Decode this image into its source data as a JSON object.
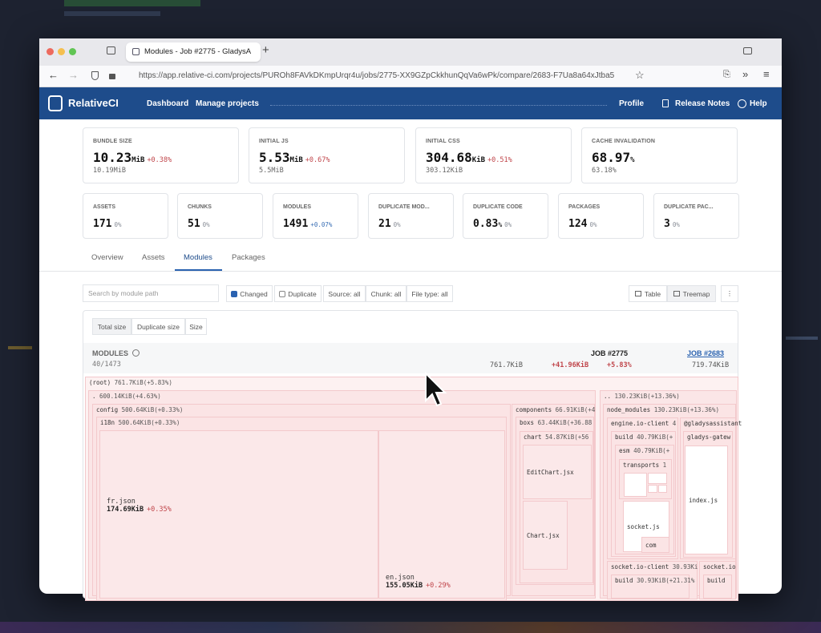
{
  "browser": {
    "tab_title": "Modules - Job #2775 - GladysA",
    "url": "https://app.relative-ci.com/projects/PUROh8FAVkDKmpUrqr4u/jobs/2775-XX9GZpCkkhunQqVa6wPk/compare/2683-F7Ua8a64xJtba5"
  },
  "nav": {
    "brand": "RelativeCI",
    "links": [
      "Dashboard",
      "Manage projects"
    ],
    "right": [
      "Profile",
      "Release Notes",
      "Help"
    ]
  },
  "summary": {
    "primary": [
      {
        "label": "BUNDLE SIZE",
        "value": "10.23",
        "unit": "MiB",
        "delta": "+0.38%",
        "delta_color": "#c0464b",
        "baseline": "10.19MiB"
      },
      {
        "label": "INITIAL JS",
        "value": "5.53",
        "unit": "MiB",
        "delta": "+0.67%",
        "delta_color": "#c0464b",
        "baseline": "5.5MiB"
      },
      {
        "label": "INITIAL CSS",
        "value": "304.68",
        "unit": "KiB",
        "delta": "+0.51%",
        "delta_color": "#c0464b",
        "baseline": "303.12KiB"
      },
      {
        "label": "CACHE INVALIDATION",
        "value": "68.97",
        "unit": "%",
        "delta": "",
        "delta_color": "#c0464b",
        "baseline": "63.18%"
      }
    ],
    "secondary": [
      {
        "label": "ASSETS",
        "value": "171",
        "unit": "",
        "delta": "0%",
        "delta_color": "#8a8f98"
      },
      {
        "label": "CHUNKS",
        "value": "51",
        "unit": "",
        "delta": "0%",
        "delta_color": "#8a8f98"
      },
      {
        "label": "MODULES",
        "value": "1491",
        "unit": "",
        "delta": "+0.07%",
        "delta_color": "#3a6fb5"
      },
      {
        "label": "DUPLICATE MOD...",
        "value": "21",
        "unit": "",
        "delta": "0%",
        "delta_color": "#8a8f98"
      },
      {
        "label": "DUPLICATE CODE",
        "value": "0.83",
        "unit": "%",
        "delta": "0%",
        "delta_color": "#8a8f98"
      },
      {
        "label": "PACKAGES",
        "value": "124",
        "unit": "",
        "delta": "0%",
        "delta_color": "#8a8f98"
      },
      {
        "label": "DUPLICATE PAC...",
        "value": "3",
        "unit": "",
        "delta": "0%",
        "delta_color": "#8a8f98"
      }
    ]
  },
  "tabs": {
    "items": [
      "Overview",
      "Assets",
      "Modules",
      "Packages"
    ],
    "active": 2
  },
  "filters": {
    "search_placeholder": "Search by module path",
    "checks": [
      {
        "label": "Changed",
        "checked": true
      },
      {
        "label": "Duplicate",
        "checked": false
      }
    ],
    "selects": [
      "Source: all",
      "Chunk: all",
      "File type: all"
    ],
    "views": [
      "Table",
      "Treemap"
    ]
  },
  "size_toggle": [
    "Total size",
    "Duplicate size",
    "Size"
  ],
  "modules_header": {
    "title": "MODULES",
    "count": "40/1473",
    "current_job": "JOB #2775",
    "current_size": "761.7KiB",
    "delta": "+41.96KiB",
    "delta_percent": "+5.83%",
    "baseline_job": "JOB #2683",
    "baseline_size": "719.74KiB"
  },
  "treemap": {
    "nodes": [
      {
        "name": "(root)",
        "size": "761.7KiB(+5.83%)"
      },
      {
        "name": ".",
        "size": "600.14KiB(+4.63%)"
      },
      {
        "name": "..",
        "size": "130.23KiB(+13.36%)"
      },
      {
        "name": "config",
        "size": "500.64KiB(+0.33%)"
      },
      {
        "name": "i18n",
        "size": "500.64KiB(+0.33%)"
      },
      {
        "name": "fr.json",
        "size": "174.69KiB",
        "delta": "+0.35%"
      },
      {
        "name": "en.json",
        "size": "155.05KiB",
        "delta": "+0.29%"
      },
      {
        "name": "components",
        "size": "66.91KiB(+4"
      },
      {
        "name": "boxs",
        "size": "63.44KiB(+36.88"
      },
      {
        "name": "chart",
        "size": "54.87KiB(+56"
      },
      {
        "name": "EditChart.jsx"
      },
      {
        "name": "Chart.jsx"
      },
      {
        "name": "node_modules",
        "size": "130.23KiB(+13.36%)"
      },
      {
        "name": "engine.io-client",
        "size": "4"
      },
      {
        "name": "build",
        "size": "40.79KiB(+"
      },
      {
        "name": "esm",
        "size": "40.79KiB(+"
      },
      {
        "name": "transports",
        "size": "1"
      },
      {
        "name": "socket.js"
      },
      {
        "name": "com"
      },
      {
        "name": "@gladysassistant"
      },
      {
        "name": "gladys-gatew"
      },
      {
        "name": "index.js"
      },
      {
        "name": "socket.io-client",
        "size": "30.93Ki"
      },
      {
        "name": "build",
        "size": "30.93KiB(+21.31%"
      },
      {
        "name": "socket.io"
      },
      {
        "name": "build"
      }
    ]
  }
}
